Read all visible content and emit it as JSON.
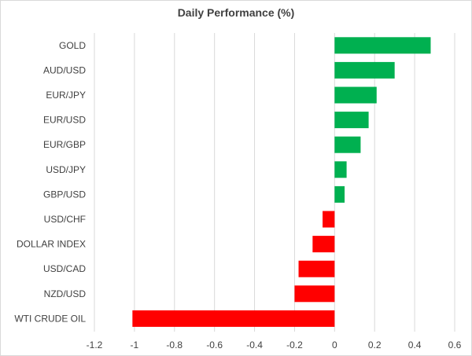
{
  "chart_data": {
    "type": "bar",
    "orientation": "horizontal",
    "title": "Daily Performance (%)",
    "xlabel": "",
    "ylabel": "",
    "categories": [
      "GOLD",
      "AUD/USD",
      "EUR/JPY",
      "EUR/USD",
      "EUR/GBP",
      "USD/JPY",
      "GBP/USD",
      "USD/CHF",
      "DOLLAR INDEX",
      "USD/CAD",
      "NZD/USD",
      "WTI CRUDE OIL"
    ],
    "values": [
      0.48,
      0.3,
      0.21,
      0.17,
      0.13,
      0.06,
      0.05,
      -0.06,
      -0.11,
      -0.18,
      -0.2,
      -1.01
    ],
    "xlim": [
      -1.2,
      0.6
    ],
    "xticks": [
      -1.2,
      -1,
      -0.8,
      -0.6,
      -0.4,
      -0.2,
      0,
      0.2,
      0.4,
      0.6
    ],
    "xtick_labels": [
      "-1.2",
      "-1",
      "-0.8",
      "-0.6",
      "-0.4",
      "-0.2",
      "0",
      "0.2",
      "0.4",
      "0.6"
    ],
    "grid": "vertical",
    "legend": "none",
    "colors": {
      "positive": "#00b050",
      "negative": "#ff0000",
      "grid": "#d9d9d9",
      "text": "#404040"
    }
  }
}
